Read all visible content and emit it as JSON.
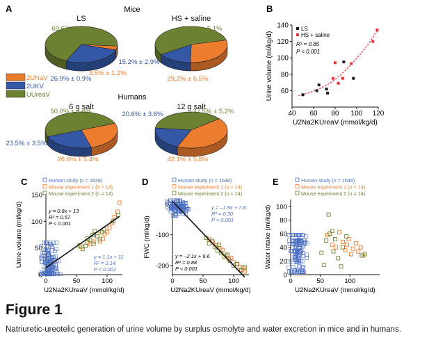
{
  "figure_title": "Figure 1",
  "caption": "Natriuretic-ureotelic generation of urine volume by surplus osmolyte and water excretion in mice and in humans.",
  "colors": {
    "na": "#ec7d2f",
    "k": "#3458a6",
    "urea": "#6c8131",
    "ls": "#1a1a1a",
    "hs": "#e8343a",
    "human": "#4a6fc0",
    "fit": "#111111"
  },
  "panel_a": {
    "letter": "A",
    "group_mice": "Mice",
    "group_humans": "Humans",
    "legend": [
      "2UNaV",
      "2UKV",
      "UUreaV"
    ],
    "pies": [
      {
        "title": "LS",
        "slices": [
          {
            "name": "2UNaV",
            "label": "3.5% ± 1.2%",
            "value": 3.5
          },
          {
            "name": "2UKV",
            "label": "26.9% ± 0.9%",
            "value": 26.9
          },
          {
            "name": "UUreaV",
            "label": "69.6% ± 1.3%",
            "value": 69.6
          }
        ]
      },
      {
        "title": "HS + saline",
        "slices": [
          {
            "name": "2UNaV",
            "label": "29.2% ± 6.5%",
            "value": 29.2
          },
          {
            "name": "2UKV",
            "label": "15.2% ± 2.9%",
            "value": 15.2
          },
          {
            "name": "UUreaV",
            "label": "55.7% ± 5.1%",
            "value": 55.7
          }
        ]
      },
      {
        "title": "6 g salt",
        "slices": [
          {
            "name": "2UNaV",
            "label": "26.6% ± 5.4%",
            "value": 26.6
          },
          {
            "name": "2UKV",
            "label": "23.5% ± 3.5%",
            "value": 23.5
          },
          {
            "name": "UUreaV",
            "label": "50.0% ± 4.8%",
            "value": 50.0
          }
        ]
      },
      {
        "title": "12 g salt",
        "slices": [
          {
            "name": "2UNaV",
            "label": "42.1% ± 5.8%",
            "value": 42.1
          },
          {
            "name": "2UKV",
            "label": "20.6% ± 3.6%",
            "value": 20.6
          },
          {
            "name": "UUreaV",
            "label": "37.5% ± 5.2%",
            "value": 37.5
          }
        ]
      }
    ]
  },
  "chart_data": [
    {
      "panel": "B",
      "type": "scatter",
      "xlabel": "U2Na2KUreaV (mmol/kg/d)",
      "ylabel": "Urine volume (ml/kg/d)",
      "xlim": [
        40,
        120
      ],
      "ylim": [
        40,
        140
      ],
      "xticks": [
        40,
        60,
        80,
        100,
        120
      ],
      "yticks": [
        60,
        80,
        100,
        120,
        140
      ],
      "legend": [
        "LS",
        "HS + saline"
      ],
      "stats": [
        "R² = 0.85",
        "P < 0.001"
      ],
      "series": [
        {
          "name": "LS",
          "points": [
            [
              50,
              55
            ],
            [
              63,
              60
            ],
            [
              65,
              67
            ],
            [
              72,
              62
            ],
            [
              73,
              57
            ],
            [
              88,
              95
            ],
            [
              97,
              75
            ]
          ]
        },
        {
          "name": "HS + saline",
          "points": [
            [
              78,
              75
            ],
            [
              80,
              94
            ],
            [
              83,
              69
            ],
            [
              87,
              75
            ],
            [
              95,
              93
            ],
            [
              115,
              120
            ],
            [
              119,
              134
            ]
          ]
        }
      ],
      "fit": {
        "type": "exponential",
        "points": [
          [
            46,
            54
          ],
          [
            55,
            57
          ],
          [
            65,
            62
          ],
          [
            75,
            69
          ],
          [
            85,
            79
          ],
          [
            95,
            92
          ],
          [
            105,
            107
          ],
          [
            112,
            119
          ],
          [
            119,
            133
          ]
        ]
      }
    },
    {
      "panel": "C",
      "type": "scatter",
      "xlabel": "U2Na2KUreaV (mmol/kg/d)",
      "ylabel": "Urine volume (ml/kg/d)",
      "xlim": [
        0,
        125
      ],
      "ylim": [
        0,
        150
      ],
      "xticks": [
        0,
        50,
        100
      ],
      "yticks": [
        0,
        50,
        100,
        150
      ],
      "legend": [
        "Human study (n = 1648)",
        "Mouse experiment 1 (n = 14)",
        "Mouse experiment 2 (n = 14)"
      ],
      "annotations": [
        "y = 0.8x + 13",
        "R² = 0.57",
        "P < 0.001",
        "y = 1.1x + 11",
        "R² = 0.14",
        "P < 0.001"
      ],
      "series": [
        {
          "name": "Mouse experiment 1",
          "points": [
            [
              58,
              52
            ],
            [
              68,
              60
            ],
            [
              72,
              57
            ],
            [
              78,
              62
            ],
            [
              84,
              76
            ],
            [
              88,
              62
            ],
            [
              93,
              67
            ],
            [
              96,
              76
            ],
            [
              100,
              80
            ],
            [
              104,
              88
            ],
            [
              108,
              97
            ],
            [
              112,
              108
            ],
            [
              117,
              118
            ],
            [
              120,
              135
            ]
          ]
        },
        {
          "name": "Mouse experiment 2",
          "points": [
            [
              55,
              55
            ],
            [
              60,
              48
            ],
            [
              65,
              54
            ],
            [
              68,
              68
            ],
            [
              72,
              65
            ],
            [
              76,
              74
            ],
            [
              78,
              58
            ],
            [
              80,
              82
            ],
            [
              84,
              72
            ],
            [
              88,
              66
            ],
            [
              92,
              80
            ],
            [
              95,
              85
            ],
            [
              110,
              100
            ],
            [
              118,
              112
            ]
          ]
        }
      ],
      "fit": [
        [
          0,
          13
        ],
        [
          120,
          109
        ]
      ]
    },
    {
      "panel": "D",
      "type": "scatter",
      "xlabel": "U2Na2KUreaV (mmol/kg/d)",
      "ylabel": "FWC (ml/kg/d)",
      "xlim": [
        0,
        125
      ],
      "ylim": [
        -230,
        15
      ],
      "xticks": [
        0,
        50,
        100
      ],
      "yticks": [
        0,
        -100,
        -200
      ],
      "legend": [
        "Human study (n = 1648)",
        "Mouse experiment 1 (n = 14)",
        "Mouse experiment 2 (n = 14)"
      ],
      "annotations": [
        "y = –1.9x + 7.8",
        "R² = 0.30",
        "P < 0.001",
        "y = –2.1x + 9.6",
        "R² = 0.88",
        "P < 0.001"
      ],
      "series": [
        {
          "name": "Mouse experiment 1",
          "points": [
            [
              60,
              -115
            ],
            [
              66,
              -125
            ],
            [
              72,
              -135
            ],
            [
              78,
              -145
            ],
            [
              82,
              -150
            ],
            [
              88,
              -168
            ],
            [
              92,
              -180
            ],
            [
              96,
              -175
            ],
            [
              100,
              -190
            ],
            [
              105,
              -196
            ],
            [
              110,
              -205
            ],
            [
              113,
              -214
            ],
            [
              116,
              -210
            ],
            [
              118,
              -220
            ]
          ]
        },
        {
          "name": "Mouse experiment 2",
          "points": [
            [
              55,
              -110
            ],
            [
              60,
              -128
            ],
            [
              65,
              -120
            ],
            [
              70,
              -140
            ],
            [
              74,
              -152
            ],
            [
              76,
              -132
            ],
            [
              80,
              -160
            ],
            [
              85,
              -172
            ],
            [
              90,
              -165
            ],
            [
              94,
              -185
            ],
            [
              100,
              -200
            ],
            [
              106,
              -195
            ],
            [
              112,
              -216
            ],
            [
              118,
              -206
            ]
          ]
        }
      ],
      "fit": [
        [
          0,
          9.6
        ],
        [
          118,
          -238
        ]
      ]
    },
    {
      "panel": "E",
      "type": "scatter",
      "xlabel": "U2Na2KUreaV (mmol/kg/d)",
      "ylabel": "Water intake (ml/kg/d)",
      "xlim": [
        0,
        150
      ],
      "ylim": [
        0,
        110
      ],
      "xticks": [
        0,
        50,
        100
      ],
      "yticks": [
        0,
        20,
        40,
        60,
        80,
        100
      ],
      "legend": [
        "Human study (n = 1648)",
        "Mouse experiment 1 (n = 14)",
        "Mouse experiment 2 (n = 14)"
      ],
      "series": [
        {
          "name": "Mouse experiment 1",
          "points": [
            [
              62,
              58
            ],
            [
              70,
              44
            ],
            [
              76,
              40
            ],
            [
              82,
              62
            ],
            [
              88,
              48
            ],
            [
              92,
              36
            ],
            [
              95,
              44
            ],
            [
              98,
              52
            ],
            [
              102,
              30
            ],
            [
              105,
              38
            ],
            [
              110,
              46
            ],
            [
              114,
              34
            ],
            [
              118,
              40
            ],
            [
              122,
              28
            ]
          ]
        },
        {
          "name": "Mouse experiment 2",
          "points": [
            [
              52,
              32
            ],
            [
              56,
              14
            ],
            [
              60,
              50
            ],
            [
              64,
              88
            ],
            [
              66,
              60
            ],
            [
              70,
              64
            ],
            [
              72,
              34
            ],
            [
              75,
              52
            ],
            [
              80,
              24
            ],
            [
              85,
              12
            ],
            [
              88,
              40
            ],
            [
              94,
              56
            ],
            [
              120,
              28
            ],
            [
              125,
              30
            ]
          ]
        }
      ]
    }
  ]
}
